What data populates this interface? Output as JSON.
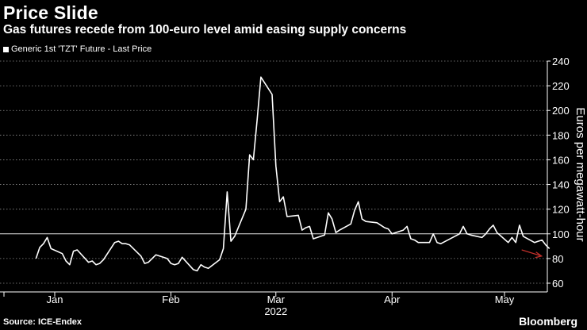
{
  "title": "Price Slide",
  "subtitle": "Gas futures recede from 100-euro level amid easing supply concerns",
  "source": "Source: ICE-Endex",
  "brand": "Bloomberg",
  "colors": {
    "background": "#000000",
    "line": "#ffffff",
    "grid": "#8c8c8c",
    "arrow": "#c0302b"
  },
  "chart_data": {
    "type": "line",
    "title": "Price Slide",
    "subtitle": "Gas futures recede from 100-euro level amid easing supply concerns",
    "ylabel": "Euros per megawatt-hour",
    "ylim": [
      60,
      240
    ],
    "yticks": [
      60,
      80,
      100,
      120,
      140,
      160,
      180,
      200,
      220,
      240
    ],
    "y_axis_side": "right",
    "grid": "horizontal dotted",
    "reference_line": 100,
    "legend": "top-left",
    "xtick_labels": [
      "Jan",
      "Feb",
      "Mar",
      "Apr",
      "May"
    ],
    "year_label": "2022",
    "series": [
      {
        "name": "Generic 1st 'TZT' Future - Last Price",
        "x": [
          "2021-12-27",
          "2021-12-28",
          "2021-12-29",
          "2021-12-30",
          "2021-12-31",
          "2022-01-03",
          "2022-01-04",
          "2022-01-05",
          "2022-01-06",
          "2022-01-07",
          "2022-01-10",
          "2022-01-11",
          "2022-01-12",
          "2022-01-13",
          "2022-01-14",
          "2022-01-17",
          "2022-01-18",
          "2022-01-19",
          "2022-01-20",
          "2022-01-21",
          "2022-01-24",
          "2022-01-25",
          "2022-01-26",
          "2022-01-27",
          "2022-01-28",
          "2022-01-31",
          "2022-02-01",
          "2022-02-02",
          "2022-02-03",
          "2022-02-04",
          "2022-02-07",
          "2022-02-08",
          "2022-02-09",
          "2022-02-10",
          "2022-02-11",
          "2022-02-14",
          "2022-02-15",
          "2022-02-16",
          "2022-02-17",
          "2022-02-18",
          "2022-02-21",
          "2022-02-22",
          "2022-02-23",
          "2022-02-24",
          "2022-02-25",
          "2022-02-28",
          "2022-03-01",
          "2022-03-02",
          "2022-03-03",
          "2022-03-04",
          "2022-03-07",
          "2022-03-08",
          "2022-03-09",
          "2022-03-10",
          "2022-03-11",
          "2022-03-14",
          "2022-03-15",
          "2022-03-16",
          "2022-03-17",
          "2022-03-18",
          "2022-03-21",
          "2022-03-22",
          "2022-03-23",
          "2022-03-24",
          "2022-03-25",
          "2022-03-28",
          "2022-03-29",
          "2022-03-30",
          "2022-03-31",
          "2022-04-01",
          "2022-04-04",
          "2022-04-05",
          "2022-04-06",
          "2022-04-07",
          "2022-04-08",
          "2022-04-11",
          "2022-04-12",
          "2022-04-13",
          "2022-04-14",
          "2022-04-19",
          "2022-04-20",
          "2022-04-21",
          "2022-04-22",
          "2022-04-25",
          "2022-04-26",
          "2022-04-27",
          "2022-04-28",
          "2022-04-29",
          "2022-05-02",
          "2022-05-03",
          "2022-05-04",
          "2022-05-05",
          "2022-05-06",
          "2022-05-09",
          "2022-05-10",
          "2022-05-11",
          "2022-05-12",
          "2022-05-13",
          "2022-05-16"
        ],
        "values": [
          80,
          89,
          92,
          97,
          88,
          84,
          78,
          75,
          86,
          87,
          77,
          78,
          75,
          76,
          79,
          93,
          94,
          92,
          92,
          91,
          82,
          76,
          77,
          80,
          83,
          80,
          76,
          75,
          76,
          81,
          71,
          70,
          75,
          73,
          72,
          79,
          88,
          134,
          94,
          98,
          120,
          164,
          160,
          192,
          227,
          213,
          155,
          126,
          130,
          114,
          115,
          103,
          105,
          106,
          96,
          99,
          117,
          112,
          101,
          103,
          108,
          119,
          126,
          112,
          110,
          109,
          107,
          105,
          104,
          100,
          103,
          106,
          96,
          95,
          93,
          93,
          100,
          93,
          92,
          100,
          106,
          100,
          99,
          97,
          100,
          104,
          107,
          101,
          93,
          97,
          93,
          107,
          98,
          93,
          94,
          95,
          91,
          88,
          null
        ]
      }
    ],
    "annotation": "red downward arrow near latest price"
  }
}
